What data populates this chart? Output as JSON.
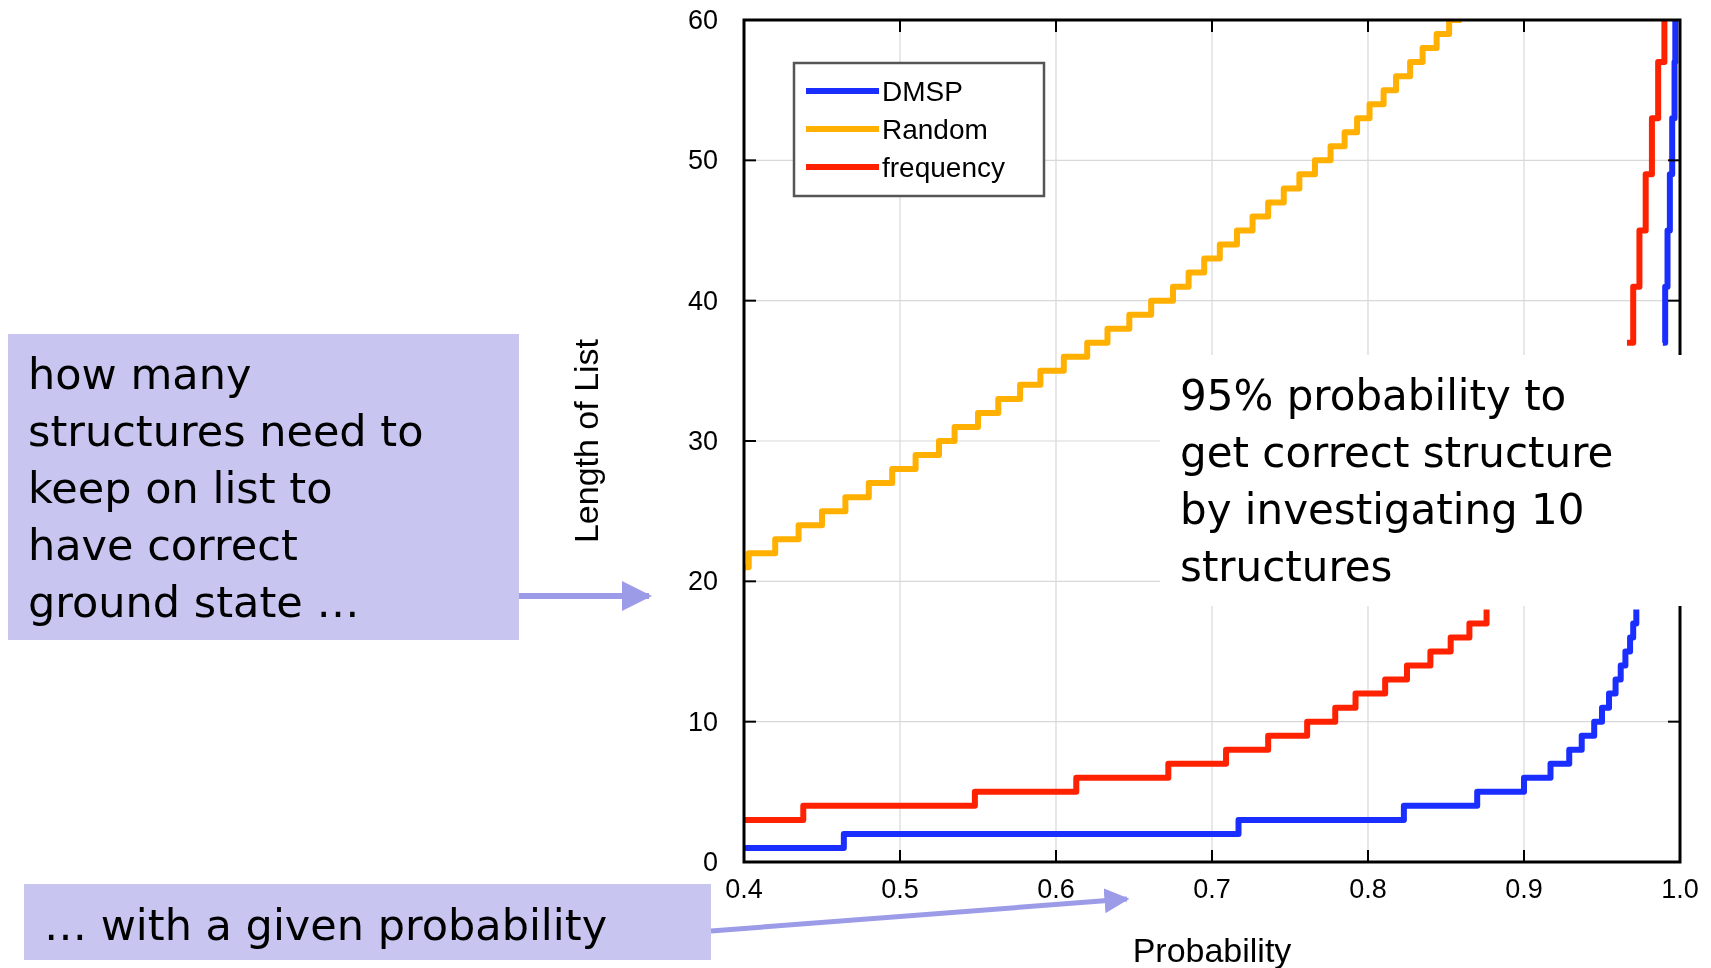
{
  "chart_data": {
    "type": "step",
    "xlabel": "Probability",
    "ylabel": "Length of List",
    "xlim": [
      0.4,
      1.0
    ],
    "ylim": [
      0,
      60
    ],
    "xticks": [
      0.4,
      0.5,
      0.6,
      0.7,
      0.8,
      0.9,
      {
        "value": 1,
        "label": "1.0"
      }
    ],
    "yticks": [
      0,
      10,
      20,
      30,
      40,
      50,
      60
    ],
    "grid": true,
    "legend": "top left",
    "series": [
      {
        "name": "DMSP",
        "color": "#1a2eff",
        "x": [
          0.4,
          0.464,
          0.717,
          0.823,
          0.87,
          0.9,
          0.917,
          0.929,
          0.937,
          0.945,
          0.95,
          0.9545,
          0.9587,
          0.962,
          0.965,
          0.968,
          0.97,
          0.972,
          0.98,
          0.989,
          0.9905,
          0.992,
          0.9935,
          0.995,
          0.9965,
          0.997
        ],
        "values": [
          1,
          2,
          3,
          4,
          5,
          6,
          7,
          8,
          9,
          10,
          11,
          12,
          13,
          14,
          15,
          16,
          17,
          18,
          null,
          37,
          41,
          45,
          49,
          53,
          57,
          60
        ]
      },
      {
        "name": "Random",
        "color": "#ffb000",
        "x": [
          0.4,
          0.403,
          0.42,
          0.435,
          0.45,
          0.465,
          0.48,
          0.495,
          0.51,
          0.525,
          0.535,
          0.55,
          0.563,
          0.577,
          0.59,
          0.605,
          0.62,
          0.633,
          0.647,
          0.661,
          0.675,
          0.685,
          0.695,
          0.705,
          0.716,
          0.726,
          0.736,
          0.746,
          0.756,
          0.766,
          0.776,
          0.785,
          0.793,
          0.801,
          0.81,
          0.818,
          0.827,
          0.835,
          0.844,
          0.852,
          0.86
        ],
        "values": [
          21,
          22,
          23,
          24,
          25,
          26,
          27,
          28,
          29,
          30,
          31,
          32,
          33,
          34,
          35,
          36,
          37,
          38,
          39,
          40,
          41,
          42,
          43,
          44,
          45,
          46,
          47,
          48,
          49,
          50,
          51,
          52,
          53,
          54,
          55,
          56,
          57,
          58,
          59,
          60,
          60
        ]
      },
      {
        "name": "frequency",
        "color": "#ff2200",
        "x": [
          0.4,
          0.438,
          0.548,
          0.613,
          0.672,
          0.709,
          0.736,
          0.761,
          0.779,
          0.792,
          0.811,
          0.825,
          0.84,
          0.853,
          0.865,
          0.876,
          0.895,
          0.966,
          0.97,
          0.974,
          0.978,
          0.982,
          0.986,
          0.99
        ],
        "values": [
          3,
          4,
          5,
          6,
          7,
          8,
          9,
          10,
          11,
          12,
          13,
          14,
          15,
          16,
          17,
          18,
          null,
          37,
          41,
          45,
          49,
          53,
          57,
          60
        ]
      }
    ],
    "annotations": [
      "how many\nstructures need to\nkeep on list to\nhave correct\nground state …",
      "… with a given probability",
      "95% probability to\nget correct structure\nby investigating 10\nstructures"
    ]
  }
}
